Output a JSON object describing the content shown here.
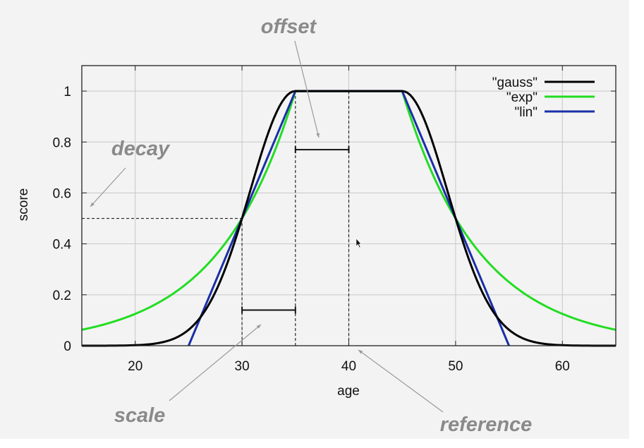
{
  "chart_data": {
    "type": "line",
    "xlabel": "age",
    "ylabel": "score",
    "xlim": [
      15,
      65
    ],
    "ylim": [
      0,
      1.1
    ],
    "x_ticks": [
      20,
      30,
      40,
      50,
      60
    ],
    "y_ticks": [
      0,
      0.2,
      0.4,
      0.6,
      0.8,
      1
    ],
    "x_tick_labels": [
      "20",
      "30",
      "40",
      "50",
      "60"
    ],
    "y_tick_labels": [
      "0",
      "0.2",
      "0.4",
      "0.6",
      "0.8",
      "1"
    ],
    "grid": true,
    "legend_position": "top-right",
    "series": [
      {
        "name": "\"gauss\"",
        "color": "#000000",
        "x": [
          15,
          20,
          22,
          24,
          25,
          26,
          27,
          28,
          29,
          30,
          31,
          32,
          33,
          34,
          35,
          40,
          45,
          46,
          47,
          48,
          49,
          50,
          51,
          52,
          53,
          54,
          55,
          56,
          58,
          60,
          65
        ],
        "y": [
          0.0,
          0.0002,
          0.0017,
          0.0123,
          0.0313,
          0.0717,
          0.1479,
          0.2743,
          0.4575,
          0.5,
          0.6855,
          0.8094,
          0.9117,
          0.9772,
          1.0,
          1.0,
          1.0,
          0.9772,
          0.9117,
          0.8094,
          0.6855,
          0.5,
          0.4575,
          0.2743,
          0.1479,
          0.0717,
          0.0313,
          0.0123,
          0.0017,
          0.0002,
          0.0
        ]
      },
      {
        "name": "\"exp\"",
        "color": "#22dd22",
        "x": [
          15,
          17.5,
          20,
          22.5,
          25,
          27.5,
          30,
          32.5,
          35,
          40,
          45,
          47.5,
          50,
          52.5,
          55,
          57.5,
          60,
          62.5,
          65
        ],
        "y": [
          0.0625,
          0.0884,
          0.125,
          0.1768,
          0.25,
          0.3536,
          0.5,
          0.7071,
          1.0,
          1.0,
          1.0,
          0.7071,
          0.5,
          0.3536,
          0.25,
          0.1768,
          0.125,
          0.0884,
          0.0625
        ]
      },
      {
        "name": "\"lin\"",
        "color": "#1a2fa8",
        "x": [
          25,
          35,
          45,
          55
        ],
        "y": [
          0,
          1,
          1,
          0
        ]
      }
    ],
    "annotations": [
      {
        "text": "offset"
      },
      {
        "text": "decay"
      },
      {
        "text": "scale"
      },
      {
        "text": "reference"
      }
    ],
    "markers": {
      "reference_x": 40,
      "offset_range": [
        35,
        40
      ],
      "offset_bar_y": 0.77,
      "scale_range": [
        30,
        35
      ],
      "scale_bar_y": 0.14,
      "decay_point": [
        30,
        0.5
      ]
    }
  }
}
